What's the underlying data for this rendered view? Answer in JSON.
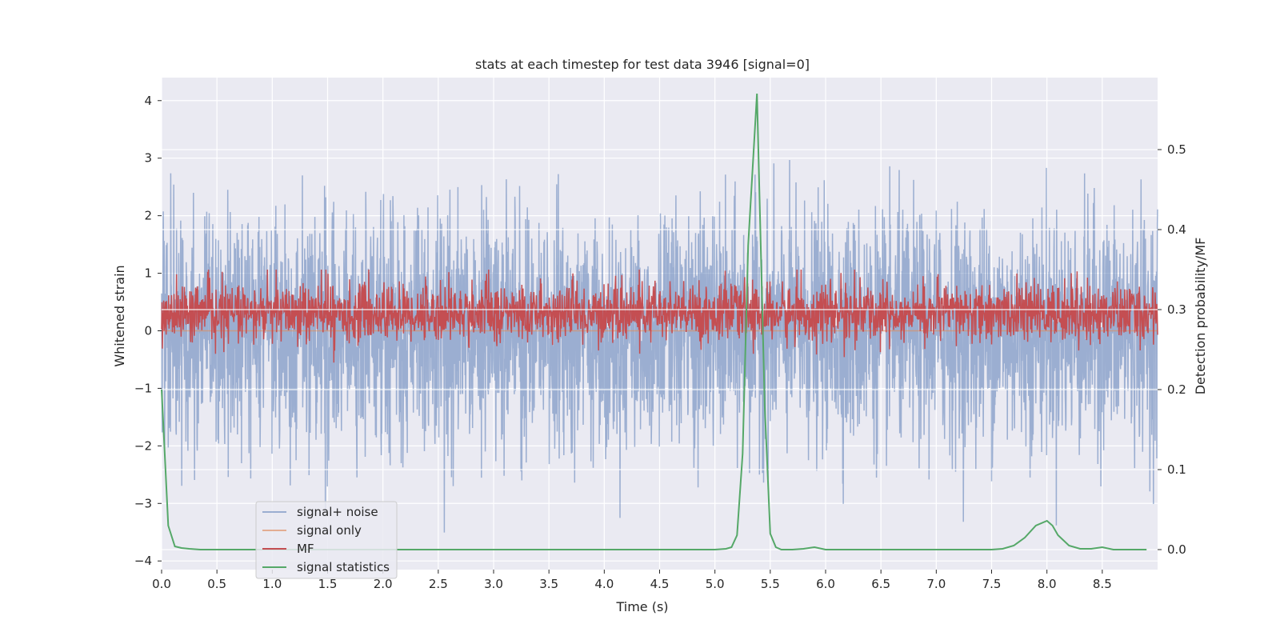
{
  "chart_data": {
    "type": "line",
    "title": "stats at each timestep for test data 3946 [signal=0]",
    "xlabel": "Time (s)",
    "ylabel": "Whitened strain",
    "y2label": "Detection probability/MF",
    "xlim": [
      0.0,
      9.0
    ],
    "ylim": [
      -4.15,
      4.4
    ],
    "y2lim": [
      -0.025,
      0.59
    ],
    "x_ticks": [
      "0.0",
      "0.5",
      "1.0",
      "1.5",
      "2.0",
      "2.5",
      "3.0",
      "3.5",
      "4.0",
      "4.5",
      "5.0",
      "5.5",
      "6.0",
      "6.5",
      "7.0",
      "7.5",
      "8.0",
      "8.5"
    ],
    "y_ticks": [
      "−4",
      "−3",
      "−2",
      "−1",
      "0",
      "1",
      "2",
      "3",
      "4"
    ],
    "y2_ticks": [
      "0.0",
      "0.1",
      "0.2",
      "0.3",
      "0.4",
      "0.5"
    ],
    "grid": true,
    "legend_position": "lower-left",
    "series": [
      {
        "name": "signal+ noise",
        "color": "#4c72b0",
        "axis": "left",
        "style": "noise",
        "sample_rate_hz": 2048,
        "approx_std": 1.0
      },
      {
        "name": "signal only",
        "color": "#dd8452",
        "axis": "left",
        "style": "flat",
        "values": [
          0.0
        ]
      },
      {
        "name": "MF",
        "color": "#c44e52",
        "axis": "right",
        "style": "noise",
        "approx_mean": 0.3,
        "approx_min": 0.2,
        "approx_max": 0.35
      },
      {
        "name": "signal statistics",
        "color": "#55a868",
        "axis": "right",
        "style": "line",
        "x": [
          0.0,
          0.06,
          0.12,
          0.18,
          0.25,
          0.35,
          0.5,
          1.0,
          2.0,
          3.0,
          4.0,
          4.5,
          5.0,
          5.1,
          5.15,
          5.2,
          5.25,
          5.3,
          5.38,
          5.45,
          5.5,
          5.55,
          5.6,
          5.7,
          5.8,
          5.9,
          6.0,
          6.1,
          6.5,
          7.0,
          7.5,
          7.6,
          7.7,
          7.8,
          7.9,
          8.0,
          8.05,
          8.1,
          8.2,
          8.3,
          8.4,
          8.5,
          8.6,
          8.7,
          8.9
        ],
        "y": [
          0.2,
          0.03,
          0.004,
          0.002,
          0.001,
          0.0,
          0.0,
          0.0,
          0.0,
          0.0,
          0.0,
          0.0,
          0.0,
          0.001,
          0.003,
          0.018,
          0.12,
          0.38,
          0.57,
          0.18,
          0.02,
          0.003,
          0.0,
          0.0,
          0.001,
          0.003,
          0.0,
          0.0,
          0.0,
          0.0,
          0.0,
          0.001,
          0.005,
          0.015,
          0.03,
          0.036,
          0.03,
          0.018,
          0.005,
          0.001,
          0.001,
          0.003,
          0.0,
          0.0,
          0.0
        ]
      }
    ]
  }
}
